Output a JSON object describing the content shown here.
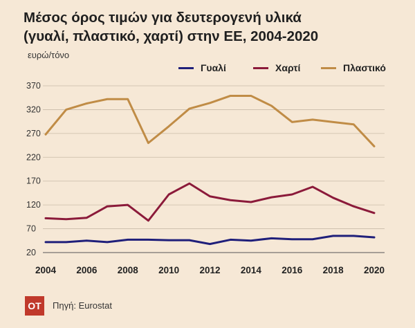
{
  "title": "Μέσος όρος τιμών για δευτερογενή υλικά\n(γυαλί, πλαστικό, χαρτί) στην ΕΕ, 2004-2020",
  "unit_label": "ευρώ/τόνο",
  "source": "Πηγή: Eurostat",
  "logo_text": "OT",
  "colors": {
    "background": "#f6e8d6",
    "glass": "#1f1f7a",
    "paper": "#8b1a3a",
    "plastic": "#c08c46"
  },
  "chart_data": {
    "type": "line",
    "title": "Μέσος όρος τιμών για δευτερογενή υλικά (γυαλί, πλαστικό, χαρτί) στην ΕΕ, 2004-2020",
    "ylabel": "ευρώ/τόνο",
    "xlabel": "",
    "x": [
      2004,
      2005,
      2006,
      2007,
      2008,
      2009,
      2010,
      2011,
      2012,
      2013,
      2014,
      2015,
      2016,
      2017,
      2018,
      2019,
      2020
    ],
    "x_ticks": [
      "2004",
      "2006",
      "2008",
      "2010",
      "2012",
      "2014",
      "2016",
      "2018",
      "2020"
    ],
    "y_ticks": [
      "20",
      "70",
      "120",
      "170",
      "220",
      "270",
      "320",
      "370"
    ],
    "ylim": [
      20,
      370
    ],
    "grid": "horizontal",
    "legend_position": "top-right",
    "series": [
      {
        "name": "Γυαλί",
        "color": "#1f1f7a",
        "values": [
          42,
          42,
          45,
          42,
          47,
          47,
          46,
          46,
          38,
          47,
          45,
          50,
          48,
          48,
          55,
          55,
          52
        ]
      },
      {
        "name": "Χαρτί",
        "color": "#8b1a3a",
        "values": [
          92,
          90,
          93,
          117,
          120,
          87,
          142,
          165,
          138,
          130,
          126,
          136,
          142,
          158,
          135,
          117,
          103
        ]
      },
      {
        "name": "Πλαστικό",
        "color": "#c08c46",
        "values": [
          268,
          320,
          333,
          342,
          342,
          250,
          285,
          322,
          334,
          349,
          349,
          328,
          294,
          299,
          294,
          289,
          243
        ]
      }
    ]
  }
}
